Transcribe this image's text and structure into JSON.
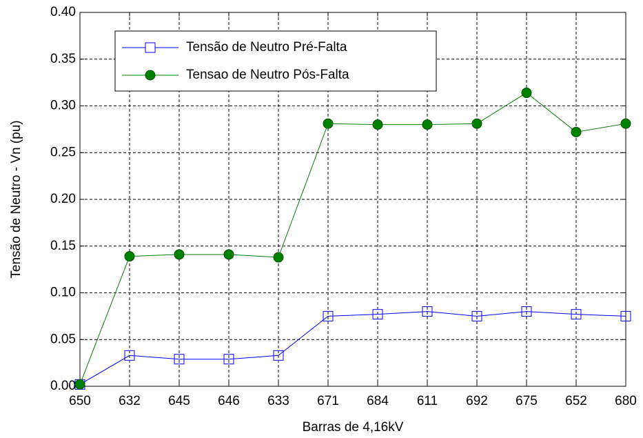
{
  "chart_data": {
    "type": "line",
    "x_label": "Barras de 4,16kV",
    "y_label": "Tensão de Neutro - Vn (pu)",
    "categories": [
      "650",
      "632",
      "645",
      "646",
      "633",
      "671",
      "684",
      "611",
      "692",
      "675",
      "652",
      "680"
    ],
    "series": [
      {
        "name": "Tensão de Neutro Pré-Falta",
        "color": "#0000ff",
        "marker": "square",
        "values": [
          0.002,
          0.033,
          0.029,
          0.029,
          0.033,
          0.075,
          0.077,
          0.08,
          0.075,
          0.08,
          0.077,
          0.075
        ]
      },
      {
        "name": "Tensao de Neutro Pós-Falta",
        "color": "#008000",
        "marker": "circle",
        "values": [
          0.002,
          0.139,
          0.141,
          0.141,
          0.138,
          0.281,
          0.28,
          0.28,
          0.281,
          0.314,
          0.272,
          0.281
        ]
      }
    ],
    "ylim": [
      0,
      0.4
    ],
    "yticks": [
      {
        "value": 0,
        "label": "0.00"
      },
      0.05,
      {
        "value": 0.1,
        "label": "0.10"
      },
      0.15,
      {
        "value": 0.2,
        "label": "0.20"
      },
      0.25,
      {
        "value": 0.3,
        "label": "0.30"
      },
      0.35,
      {
        "value": 0.4,
        "label": "0.40"
      }
    ],
    "grid": true,
    "legend": "upper left"
  }
}
